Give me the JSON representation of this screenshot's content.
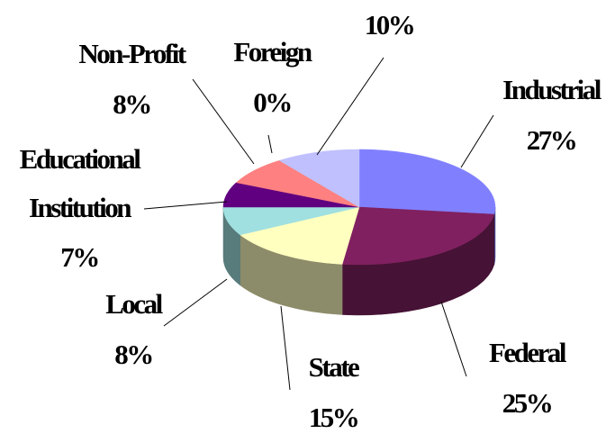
{
  "chart_data": {
    "type": "pie3d",
    "categories": [
      "Industrial",
      "Federal",
      "State",
      "Local",
      "Educational Institution",
      "Non-Profit",
      "Foreign",
      null
    ],
    "values": [
      27,
      25,
      15,
      8,
      7,
      8,
      0,
      10
    ],
    "value_labels": [
      "27%",
      "25%",
      "15%",
      "8%",
      "7%",
      "8%",
      "0%",
      "10%"
    ],
    "colors": [
      "#8080ff",
      "#802060",
      "#ffffc0",
      "#a0e0e0",
      "#600080",
      "#ff8080",
      "#c0c0c0",
      "#c0c0ff"
    ]
  }
}
